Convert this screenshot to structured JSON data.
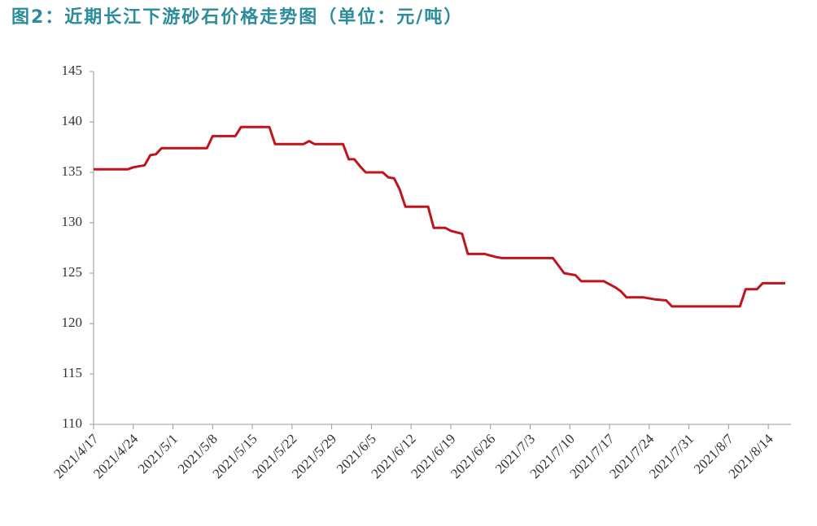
{
  "chart_data": {
    "type": "line",
    "title": "图2：近期长江下游砂石价格走势图（单位：元/吨）",
    "x": [
      "2021/4/17",
      "2021/4/23",
      "2021/4/24",
      "2021/4/26",
      "2021/4/27",
      "2021/4/28",
      "2021/4/29",
      "2021/5/7",
      "2021/5/8",
      "2021/5/12",
      "2021/5/13",
      "2021/5/18",
      "2021/5/19",
      "2021/5/24",
      "2021/5/25",
      "2021/5/26",
      "2021/5/31",
      "2021/6/1",
      "2021/6/2",
      "2021/6/3",
      "2021/6/4",
      "2021/6/7",
      "2021/6/8",
      "2021/6/9",
      "2021/6/10",
      "2021/6/11",
      "2021/6/15",
      "2021/6/16",
      "2021/6/18",
      "2021/6/19",
      "2021/6/21",
      "2021/6/22",
      "2021/6/25",
      "2021/6/27",
      "2021/6/28",
      "2021/7/7",
      "2021/7/9",
      "2021/7/11",
      "2021/7/12",
      "2021/7/16",
      "2021/7/18",
      "2021/7/19",
      "2021/7/20",
      "2021/7/23",
      "2021/7/25",
      "2021/7/27",
      "2021/7/28",
      "2021/8/9",
      "2021/8/10",
      "2021/8/12",
      "2021/8/13",
      "2021/8/17"
    ],
    "series": [
      {
        "color": "#c0141c",
        "values": [
          135.3,
          135.3,
          135.5,
          135.7,
          136.7,
          136.8,
          137.4,
          137.4,
          138.6,
          138.6,
          139.5,
          139.5,
          137.8,
          137.8,
          138.1,
          137.8,
          137.8,
          136.3,
          136.3,
          135.6,
          135.0,
          135.0,
          134.5,
          134.4,
          133.3,
          131.6,
          131.6,
          129.5,
          129.5,
          129.2,
          128.9,
          126.9,
          126.9,
          126.6,
          126.5,
          126.5,
          125.0,
          124.8,
          124.2,
          124.2,
          123.6,
          123.2,
          122.6,
          122.6,
          122.4,
          122.3,
          121.7,
          121.7,
          123.4,
          123.4,
          124.0,
          124.0
        ]
      }
    ],
    "xlim": [
      "2021/4/17",
      "2021/8/18"
    ],
    "xticks": [
      "2021/4/17",
      "2021/4/24",
      "2021/5/1",
      "2021/5/8",
      "2021/5/15",
      "2021/5/22",
      "2021/5/29",
      "2021/6/5",
      "2021/6/12",
      "2021/6/19",
      "2021/6/26",
      "2021/7/3",
      "2021/7/10",
      "2021/7/17",
      "2021/7/24",
      "2021/7/31",
      "2021/8/7",
      "2021/8/14"
    ],
    "ylim": [
      110,
      145
    ],
    "yticks": [
      110,
      115,
      120,
      125,
      130,
      135,
      140,
      145
    ],
    "grid": false
  }
}
